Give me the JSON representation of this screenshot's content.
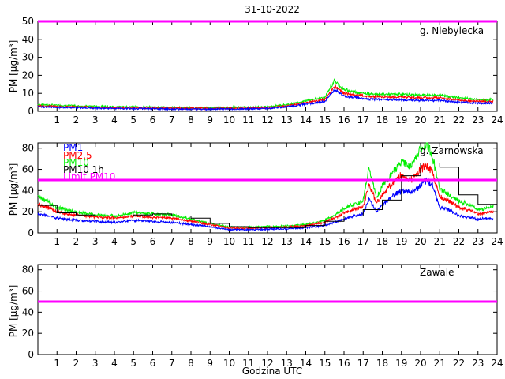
{
  "title": "31-10-2022",
  "xlabel": "Godzina UTC",
  "ylabel": "PM [µg/m³]",
  "colors": {
    "PM1": "#0000ff",
    "PM2.5": "#ff0000",
    "PM10": "#00ee00",
    "PM10 1h": "#000000",
    "limit": "#ff00ff"
  },
  "chart_data": [
    {
      "type": "line",
      "station": "g. Niebylecka",
      "xlim": [
        0,
        24
      ],
      "ylim": [
        0,
        50
      ],
      "yticks": [
        0,
        10,
        20,
        30,
        40,
        50
      ],
      "xticks": [
        1,
        2,
        3,
        4,
        5,
        6,
        7,
        8,
        9,
        10,
        11,
        12,
        13,
        14,
        15,
        16,
        17,
        18,
        19,
        20,
        21,
        22,
        23,
        24
      ],
      "limit_PM10": 50,
      "series": [
        {
          "name": "PM1",
          "x": [
            0,
            1,
            2,
            3,
            4,
            5,
            6,
            7,
            8,
            9,
            10,
            11,
            12,
            13,
            14,
            15,
            15.5,
            16,
            17,
            18,
            19,
            20,
            21,
            22,
            23,
            23.8
          ],
          "values": [
            2.5,
            2.2,
            2,
            1.8,
            1.6,
            1.5,
            1.4,
            1.3,
            1.2,
            1.2,
            1.3,
            1.4,
            1.6,
            2.5,
            4,
            5.5,
            12,
            8.5,
            7,
            6.5,
            6.5,
            6,
            6,
            5,
            4.5,
            4.5
          ]
        },
        {
          "name": "PM2.5",
          "x": [
            0,
            1,
            2,
            3,
            4,
            5,
            6,
            7,
            8,
            9,
            10,
            11,
            12,
            13,
            14,
            15,
            15.5,
            16,
            17,
            18,
            19,
            20,
            21,
            22,
            23,
            23.8
          ],
          "values": [
            3,
            2.7,
            2.4,
            2.2,
            2,
            1.9,
            1.8,
            1.7,
            1.6,
            1.6,
            1.7,
            1.8,
            2,
            3,
            4.8,
            6.5,
            14,
            10,
            8.5,
            8,
            8,
            7.5,
            7.5,
            6.2,
            5.5,
            5.5
          ]
        },
        {
          "name": "PM10",
          "x": [
            0,
            1,
            2,
            3,
            4,
            5,
            6,
            7,
            8,
            9,
            10,
            11,
            12,
            13,
            14,
            15,
            15.5,
            16,
            17,
            18,
            19,
            20,
            21,
            22,
            23,
            23.8
          ],
          "values": [
            3.8,
            3.4,
            3,
            2.8,
            2.6,
            2.4,
            2.3,
            2.2,
            2,
            2,
            2.2,
            2.3,
            2.6,
            3.7,
            5.8,
            7.8,
            17,
            12,
            10,
            9.5,
            9.5,
            9,
            9,
            7.5,
            6.5,
            6.5
          ]
        }
      ]
    },
    {
      "type": "line",
      "station": "g. Zarnowska",
      "xlim": [
        0,
        24
      ],
      "ylim": [
        0,
        85
      ],
      "yticks": [
        0,
        20,
        40,
        60,
        80
      ],
      "xticks": [
        1,
        2,
        3,
        4,
        5,
        6,
        7,
        8,
        9,
        10,
        11,
        12,
        13,
        14,
        15,
        16,
        17,
        18,
        19,
        20,
        21,
        22,
        23,
        24
      ],
      "limit_PM10": 50,
      "legend": [
        "PM1",
        "PM2.5",
        "PM10",
        "PM10 1h",
        "Limit PM10"
      ],
      "series": [
        {
          "name": "PM1",
          "x": [
            0,
            0.5,
            1,
            2,
            3,
            4,
            5,
            6,
            7,
            8,
            9,
            10,
            11,
            12,
            13,
            14,
            15,
            15.5,
            16,
            16.5,
            17,
            17.3,
            17.7,
            18,
            18.5,
            19,
            19.5,
            20,
            20.3,
            20.6,
            21,
            21.5,
            22,
            22.5,
            23,
            23.8
          ],
          "values": [
            18,
            16,
            14,
            12,
            11,
            10,
            12,
            11,
            10,
            8,
            6,
            3,
            3,
            3.5,
            4,
            5,
            7,
            10,
            13,
            16,
            18,
            32,
            20,
            26,
            34,
            40,
            38,
            44,
            50,
            46,
            24,
            22,
            16,
            15,
            13,
            14
          ]
        },
        {
          "name": "PM2.5",
          "x": [
            0,
            0.5,
            1,
            2,
            3,
            4,
            5,
            6,
            7,
            8,
            9,
            10,
            11,
            12,
            13,
            14,
            15,
            15.5,
            16,
            16.5,
            17,
            17.3,
            17.7,
            18,
            18.5,
            19,
            19.5,
            20,
            20.3,
            20.6,
            21,
            21.5,
            22,
            22.5,
            23,
            23.8
          ],
          "values": [
            27,
            24,
            20,
            17,
            15,
            14,
            16,
            15,
            14,
            11,
            8,
            4.5,
            4.5,
            5,
            5.5,
            7,
            10,
            14,
            19,
            22,
            25,
            46,
            28,
            36,
            46,
            55,
            50,
            60,
            64,
            58,
            34,
            30,
            24,
            22,
            18,
            20
          ]
        },
        {
          "name": "PM10",
          "x": [
            0,
            0.5,
            1,
            2,
            3,
            4,
            5,
            6,
            7,
            8,
            9,
            10,
            11,
            12,
            13,
            14,
            15,
            15.5,
            16,
            16.5,
            17,
            17.3,
            17.7,
            18,
            18.5,
            19,
            19.5,
            20,
            20.3,
            20.6,
            21,
            21.5,
            22,
            22.5,
            23,
            23.8
          ],
          "values": [
            34,
            30,
            24,
            20,
            17,
            16,
            19,
            18,
            17,
            13,
            9,
            5.5,
            5.5,
            6,
            6.5,
            8,
            12,
            17,
            23,
            27,
            30,
            62,
            34,
            44,
            56,
            68,
            62,
            80,
            85,
            74,
            42,
            36,
            30,
            27,
            22,
            25
          ]
        },
        {
          "name": "PM10 1h",
          "x": [
            0,
            1,
            2,
            3,
            4,
            5,
            6,
            7,
            8,
            9,
            10,
            11,
            12,
            13,
            14,
            15,
            16,
            17,
            18,
            19,
            20,
            21,
            22,
            23
          ],
          "values": [
            26,
            19,
            17,
            16,
            16,
            17,
            18,
            16,
            14,
            9,
            6,
            5,
            5,
            5,
            7,
            11,
            16,
            22,
            31,
            54,
            66,
            62,
            36,
            27
          ]
        }
      ]
    },
    {
      "type": "line",
      "station": "Zawale",
      "xlim": [
        0,
        24
      ],
      "ylim": [
        0,
        85
      ],
      "yticks": [
        0,
        20,
        40,
        60,
        80
      ],
      "xticks": [
        1,
        2,
        3,
        4,
        5,
        6,
        7,
        8,
        9,
        10,
        11,
        12,
        13,
        14,
        15,
        16,
        17,
        18,
        19,
        20,
        21,
        22,
        23,
        24
      ],
      "limit_PM10": 50,
      "series": []
    }
  ]
}
